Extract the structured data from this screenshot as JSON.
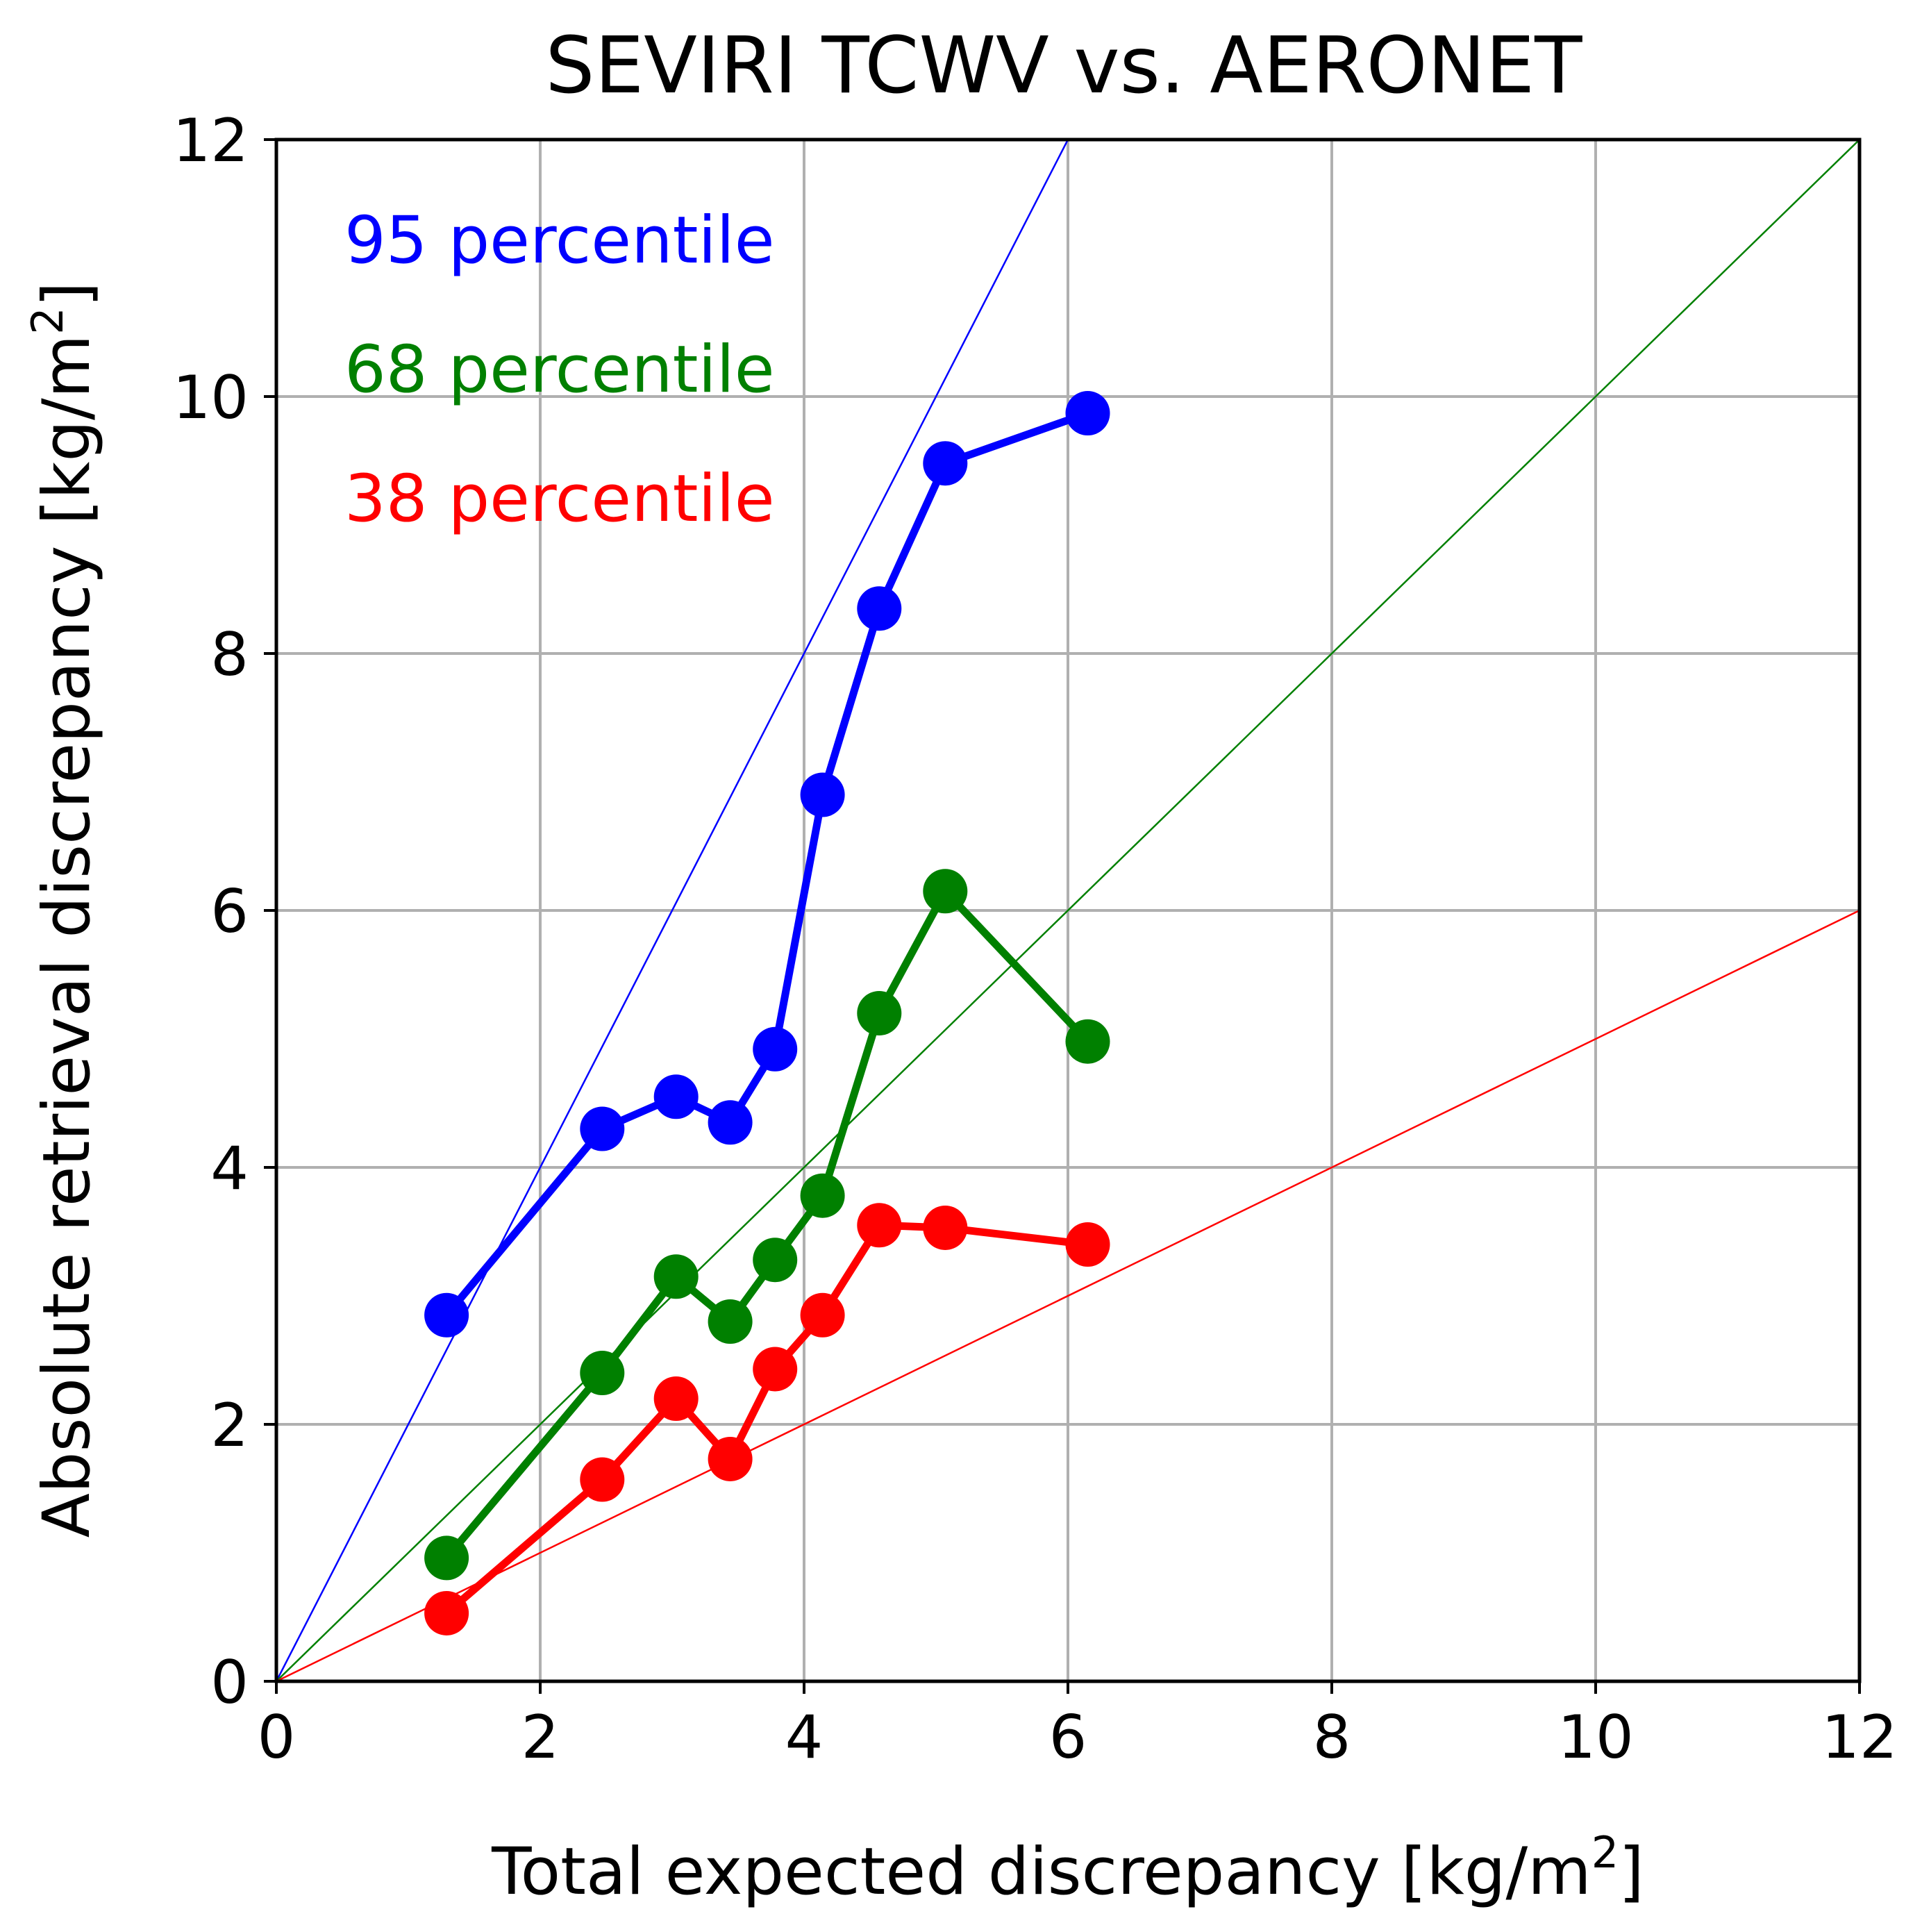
{
  "chart_data": {
    "type": "line",
    "title": "SEVIRI TCWV vs. AERONET",
    "xlabel": "Total expected discrepancy [kg/m",
    "xlabel_sup": "2",
    "xlabel_end": "]",
    "ylabel": "Absolute retrieval discrepancy [kg/m",
    "ylabel_sup": "2",
    "ylabel_end": "]",
    "xlim": [
      0,
      12
    ],
    "ylim": [
      0,
      12
    ],
    "xticks": [
      "0",
      "2",
      "4",
      "6",
      "8",
      "10",
      "12"
    ],
    "yticks": [
      "0",
      "2",
      "4",
      "6",
      "8",
      "10",
      "12"
    ],
    "grid": true,
    "legend_placement": "top-left",
    "x": [
      1.29,
      2.47,
      3.03,
      3.44,
      3.78,
      4.14,
      4.57,
      5.07,
      6.15
    ],
    "series": [
      {
        "name": "95 percentile",
        "color": "#0000ff",
        "values": [
          2.85,
          4.3,
          4.55,
          4.35,
          4.92,
          6.9,
          8.35,
          9.48,
          9.87
        ],
        "reference_slope": 2
      },
      {
        "name": "68 percentile",
        "color": "#008000",
        "values": [
          0.96,
          2.4,
          3.15,
          2.8,
          3.28,
          3.78,
          5.2,
          6.15,
          4.98
        ],
        "reference_slope": 1
      },
      {
        "name": "38 percentile",
        "color": "#ff0000",
        "values": [
          0.53,
          1.57,
          2.2,
          1.73,
          2.43,
          2.85,
          3.55,
          3.53,
          3.4
        ],
        "reference_slope": 0.5
      }
    ]
  }
}
